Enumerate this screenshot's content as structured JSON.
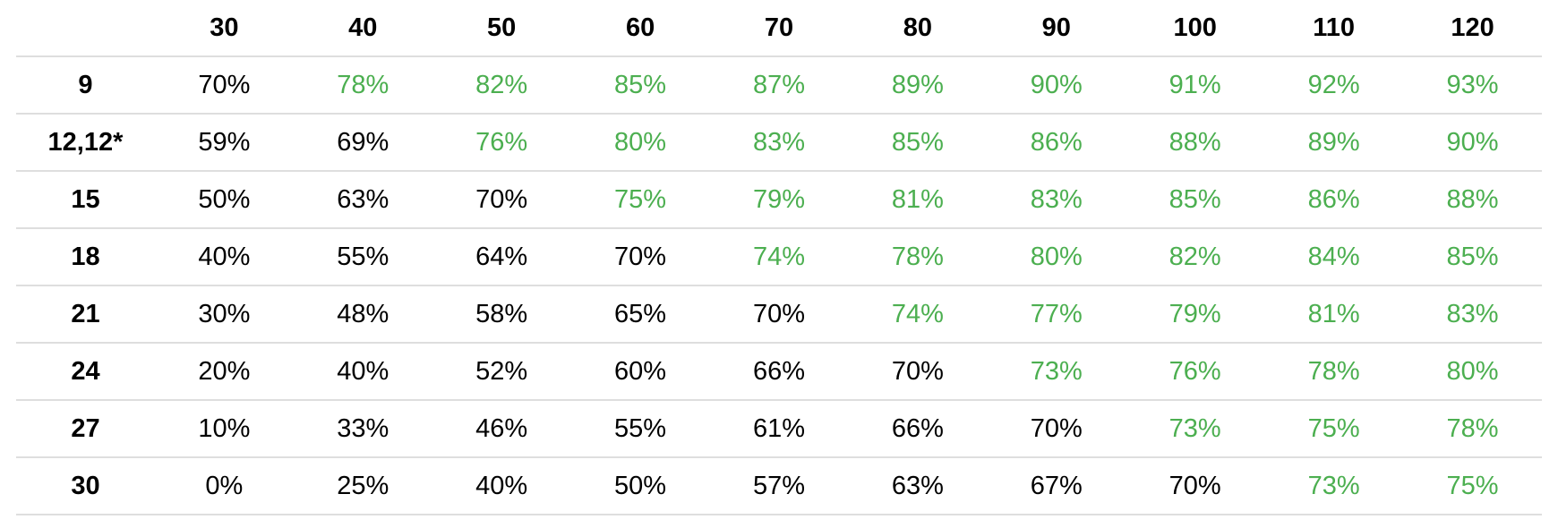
{
  "table": {
    "columns": [
      "30",
      "40",
      "50",
      "60",
      "70",
      "80",
      "90",
      "100",
      "110",
      "120"
    ],
    "rows": [
      {
        "label": "9",
        "cells": [
          "70%",
          "78%",
          "82%",
          "85%",
          "87%",
          "89%",
          "90%",
          "91%",
          "92%",
          "93%"
        ],
        "colors": [
          "#000000",
          "#4caf50",
          "#4caf50",
          "#4caf50",
          "#4caf50",
          "#4caf50",
          "#4caf50",
          "#4caf50",
          "#4caf50",
          "#4caf50"
        ]
      },
      {
        "label": "12,12*",
        "cells": [
          "59%",
          "69%",
          "76%",
          "80%",
          "83%",
          "85%",
          "86%",
          "88%",
          "89%",
          "90%"
        ],
        "colors": [
          "#000000",
          "#000000",
          "#4caf50",
          "#4caf50",
          "#4caf50",
          "#4caf50",
          "#4caf50",
          "#4caf50",
          "#4caf50",
          "#4caf50"
        ]
      },
      {
        "label": "15",
        "cells": [
          "50%",
          "63%",
          "70%",
          "75%",
          "79%",
          "81%",
          "83%",
          "85%",
          "86%",
          "88%"
        ],
        "colors": [
          "#000000",
          "#000000",
          "#000000",
          "#4caf50",
          "#4caf50",
          "#4caf50",
          "#4caf50",
          "#4caf50",
          "#4caf50",
          "#4caf50"
        ]
      },
      {
        "label": "18",
        "cells": [
          "40%",
          "55%",
          "64%",
          "70%",
          "74%",
          "78%",
          "80%",
          "82%",
          "84%",
          "85%"
        ],
        "colors": [
          "#000000",
          "#000000",
          "#000000",
          "#000000",
          "#4caf50",
          "#4caf50",
          "#4caf50",
          "#4caf50",
          "#4caf50",
          "#4caf50"
        ]
      },
      {
        "label": "21",
        "cells": [
          "30%",
          "48%",
          "58%",
          "65%",
          "70%",
          "74%",
          "77%",
          "79%",
          "81%",
          "83%"
        ],
        "colors": [
          "#000000",
          "#000000",
          "#000000",
          "#000000",
          "#000000",
          "#4caf50",
          "#4caf50",
          "#4caf50",
          "#4caf50",
          "#4caf50"
        ]
      },
      {
        "label": "24",
        "cells": [
          "20%",
          "40%",
          "52%",
          "60%",
          "66%",
          "70%",
          "73%",
          "76%",
          "78%",
          "80%"
        ],
        "colors": [
          "#000000",
          "#000000",
          "#000000",
          "#000000",
          "#000000",
          "#000000",
          "#4caf50",
          "#4caf50",
          "#4caf50",
          "#4caf50"
        ]
      },
      {
        "label": "27",
        "cells": [
          "10%",
          "33%",
          "46%",
          "55%",
          "61%",
          "66%",
          "70%",
          "73%",
          "75%",
          "78%"
        ],
        "colors": [
          "#000000",
          "#000000",
          "#000000",
          "#000000",
          "#000000",
          "#000000",
          "#000000",
          "#4caf50",
          "#4caf50",
          "#4caf50"
        ]
      },
      {
        "label": "30",
        "cells": [
          "0%",
          "25%",
          "40%",
          "50%",
          "57%",
          "63%",
          "67%",
          "70%",
          "73%",
          "75%"
        ],
        "colors": [
          "#000000",
          "#000000",
          "#000000",
          "#000000",
          "#000000",
          "#000000",
          "#000000",
          "#000000",
          "#4caf50",
          "#4caf50"
        ]
      }
    ]
  }
}
